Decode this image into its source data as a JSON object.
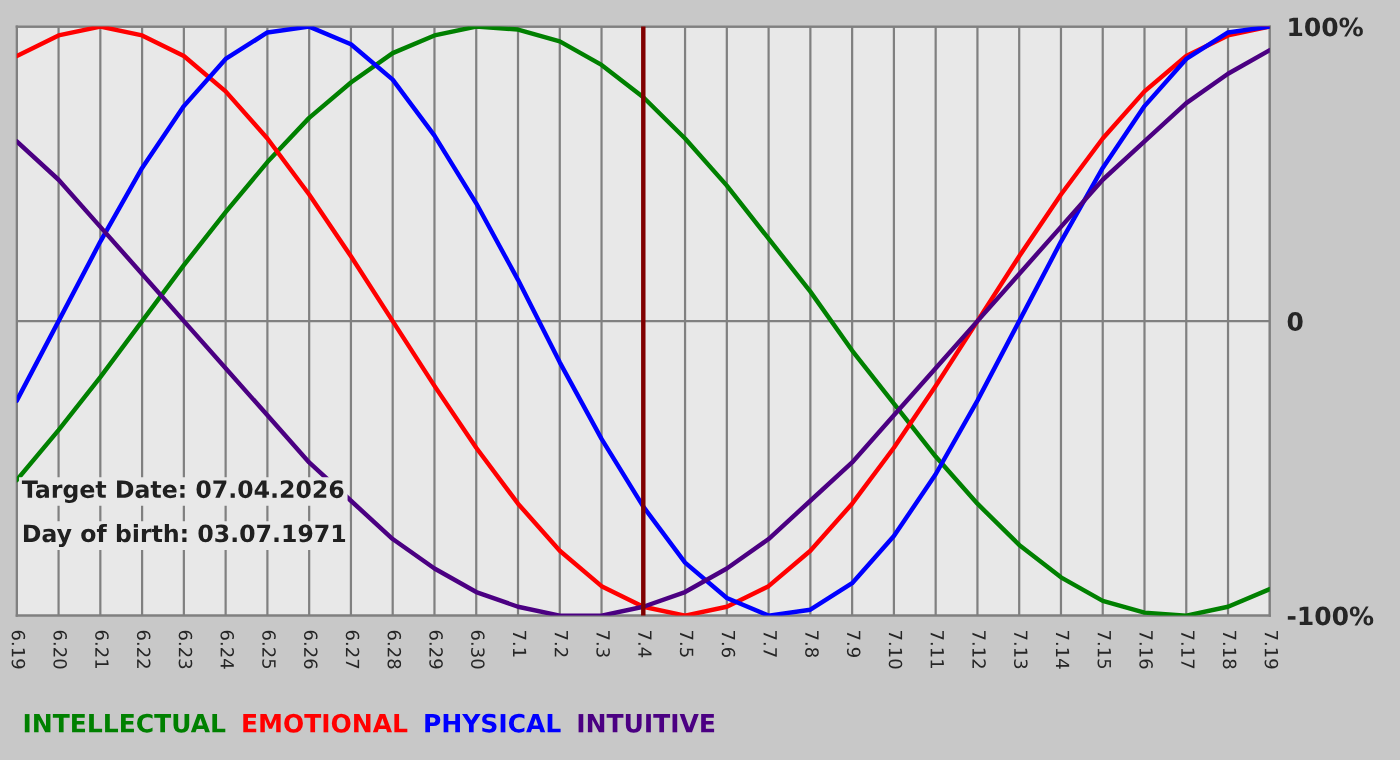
{
  "chart_data": {
    "type": "line",
    "categories": [
      "6.19",
      "6.20",
      "6.21",
      "6.22",
      "6.23",
      "6.24",
      "6.25",
      "6.26",
      "6.27",
      "6.28",
      "6.29",
      "6.30",
      "7.1",
      "7.2",
      "7.3",
      "7.4",
      "7.5",
      "7.6",
      "7.7",
      "7.8",
      "7.9",
      "7.10",
      "7.11",
      "7.12",
      "7.13",
      "7.14",
      "7.15",
      "7.16",
      "7.17",
      "7.18",
      "7.19"
    ],
    "series": [
      {
        "name": "INTELLECTUAL",
        "color": "#008000",
        "values": [
          -54,
          -37,
          -19,
          0,
          19,
          37,
          54,
          69,
          81,
          91,
          97,
          100,
          99,
          95,
          87,
          76,
          62,
          46,
          28,
          10,
          -10,
          -28,
          -46,
          -62,
          -76,
          -87,
          -95,
          -99,
          -100,
          -97,
          -91
        ]
      },
      {
        "name": "EMOTIONAL",
        "color": "#ff0000",
        "values": [
          90,
          97,
          100,
          97,
          90,
          78,
          62,
          43,
          22,
          0,
          -22,
          -43,
          -62,
          -78,
          -90,
          -97,
          -100,
          -97,
          -90,
          -78,
          -62,
          -43,
          -22,
          0,
          22,
          43,
          62,
          78,
          90,
          97,
          100
        ]
      },
      {
        "name": "PHYSICAL",
        "color": "#0000ff",
        "values": [
          -27,
          0,
          27,
          52,
          73,
          89,
          98,
          100,
          94,
          82,
          63,
          40,
          14,
          -14,
          -40,
          -63,
          -82,
          -94,
          -100,
          -98,
          -89,
          -73,
          -52,
          -27,
          0,
          27,
          52,
          73,
          89,
          98,
          100
        ]
      },
      {
        "name": "INTUITIVE",
        "color": "#4b0082",
        "values": [
          61,
          48,
          32,
          16,
          0,
          -16,
          -32,
          -48,
          -61,
          -74,
          -84,
          -92,
          -97,
          -100,
          -100,
          -97,
          -92,
          -84,
          -74,
          -61,
          -48,
          -32,
          -16,
          0,
          16,
          32,
          48,
          61,
          74,
          84,
          92
        ]
      }
    ],
    "ylim": [
      -100,
      100
    ],
    "yticks": [
      {
        "value": -100,
        "label": "-100%"
      },
      0,
      {
        "value": 100,
        "label": "100%"
      }
    ],
    "grid": true,
    "legend": "bottom",
    "ref_lines": [
      {
        "axis": "x",
        "value": "7.4",
        "color": "#800000"
      }
    ],
    "annotations": [
      "Target Date: 07.04.2026",
      "Day of birth: 03.07.1971"
    ]
  }
}
